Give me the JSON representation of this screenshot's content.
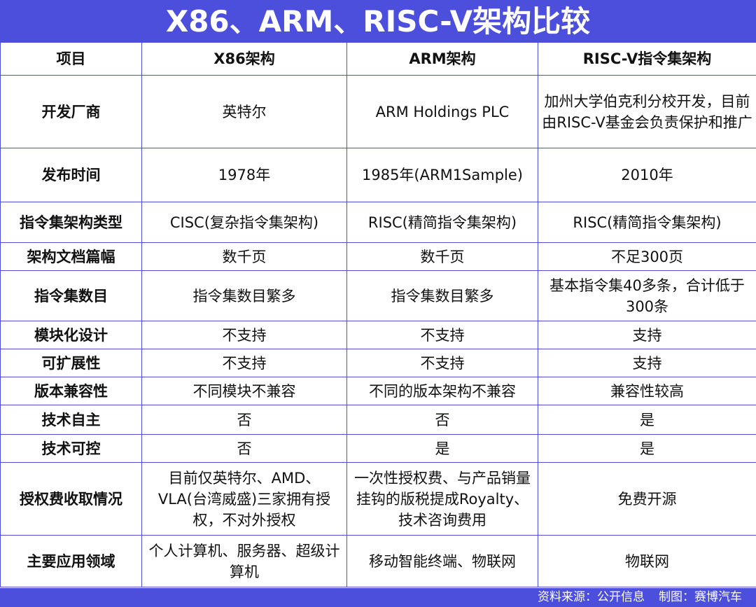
{
  "header": {
    "title": "X86、ARM、RISC-V架构比较"
  },
  "table": {
    "columns": [
      "项目",
      "X86架构",
      "ARM架构",
      "RISC-V指令集架构"
    ],
    "rows": [
      [
        "开发厂商",
        "英特尔",
        "ARM Holdings PLC",
        "加州大学伯克利分校开发，目前由RISC-V基金会负责保护和推广"
      ],
      [
        "发布时间",
        "1978年",
        "1985年(ARM1Sample)",
        "2010年"
      ],
      [
        "指令集架构类型",
        "CISC(复杂指令集架构)",
        "RISC(精简指令集架构)",
        "RISC(精简指令集架构)"
      ],
      [
        "架构文档篇幅",
        "数千页",
        "数千页",
        "不足300页"
      ],
      [
        "指令集数目",
        "指令集数目繁多",
        "指令集数目繁多",
        "基本指令集40多条，合计低于300条"
      ],
      [
        "模块化设计",
        "不支持",
        "不支持",
        "支持"
      ],
      [
        "可扩展性",
        "不支持",
        "不支持",
        "支持"
      ],
      [
        "版本兼容性",
        "不同模块不兼容",
        "不同的版本架构不兼容",
        "兼容性较高"
      ],
      [
        "技术自主",
        "否",
        "否",
        "是"
      ],
      [
        "技术可控",
        "否",
        "是",
        "是"
      ],
      [
        "授权费收取情况",
        "目前仅英特尔、AMD、VLA(台湾威盛)三家拥有授权，不对外授权",
        "一次性授权费、与产品销量挂钩的版税提成Royalty、技术咨询费用",
        "免费开源"
      ],
      [
        "主要应用领域",
        "个人计算机、服务器、超级计算机",
        "移动智能终端、物联网",
        "物联网"
      ]
    ]
  },
  "footer": {
    "source": "资料来源：公开信息",
    "author": "制图：赛博汽车"
  }
}
